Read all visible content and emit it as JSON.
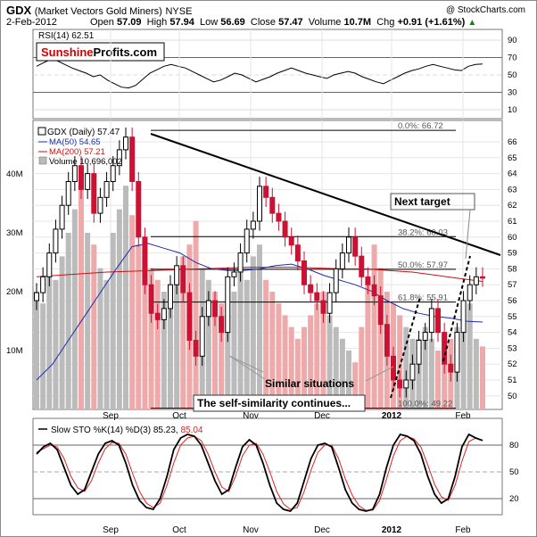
{
  "header": {
    "symbol": "GDX",
    "name": "(Market Vectors Gold Miners)",
    "exchange": "NYSE",
    "copyright": "@ StockCharts.com",
    "date": "2-Feb-2012",
    "open_label": "Open",
    "open": "57.09",
    "high_label": "High",
    "high": "57.94",
    "low_label": "Low",
    "low": "56.69",
    "close_label": "Close",
    "close": "57.47",
    "volume_label": "Volume",
    "volume": "10.7M",
    "chg_label": "Chg",
    "chg": "+0.91 (+1.61%)",
    "chg_arrow": "▲"
  },
  "logo": {
    "part1": "Sunshine",
    "part2": "Profits.com"
  },
  "panels": {
    "rsi": {
      "legend": "RSI(14) 62.51",
      "ticks": [
        "90",
        "70",
        "50",
        "30",
        "10"
      ]
    },
    "price": {
      "legend_gdx": "GDX (Daily) 57.47",
      "legend_ma50": "MA(50) 54.65",
      "legend_ma200": "MA(200) 57.21",
      "legend_volume": "Volume 10,696,002",
      "ticks": [
        "66",
        "65",
        "64",
        "63",
        "62",
        "61",
        "60",
        "59",
        "58",
        "57",
        "56",
        "55",
        "54",
        "53",
        "52",
        "51",
        "50"
      ],
      "volume_ticks": [
        "40M",
        "30M",
        "20M",
        "10M"
      ]
    },
    "stoch": {
      "legend_prefix": "Slow STO %K(14) %D(3)",
      "k_value": "85.23,",
      "d_value": "85.04",
      "ticks": [
        "80",
        "50",
        "20"
      ]
    }
  },
  "x_labels": [
    "Sep",
    "Oct",
    "Nov",
    "Dec",
    "2012",
    "Feb"
  ],
  "annotations": {
    "next_target": "Next target",
    "similar": "Similar situations",
    "self_similarity": "The self-similarity continues...",
    "fib_0": "0.0%: 66.72",
    "fib_382": "38.2%: 60.03",
    "fib_50": "50.0%: 57.97",
    "fib_618": "61.8%: 55.91",
    "fib_100": "100.0%: 49.22"
  },
  "colors": {
    "up": "#000000",
    "down": "#cc1133",
    "ma50": "#1a2ea8",
    "ma200": "#cc1111",
    "volume_down": "#eeaaaa",
    "volume_up": "#bbbbbb",
    "logo_red": "#cc0000"
  },
  "chart_data": {
    "type": "line",
    "title": "GDX (Market Vectors Gold Miners)",
    "x": [
      "Sep",
      "Oct",
      "Nov",
      "Dec",
      "2012",
      "Feb"
    ],
    "price_ylim": [
      49.5,
      66.8
    ],
    "price_close": [
      56.5,
      57.5,
      59,
      60.5,
      62,
      63.5,
      64.5,
      63,
      64,
      61.5,
      62.5,
      63.5,
      64.5,
      65.5,
      66.3,
      63.5,
      60,
      57,
      55.2,
      54.8,
      55.5,
      57,
      58.2,
      56.5,
      53.5,
      52.5,
      55,
      56,
      55,
      54,
      57.5,
      57.8,
      59,
      60.5,
      61,
      63.2,
      62.5,
      61.5,
      61,
      60,
      59.5,
      58.5,
      57,
      56.5,
      56,
      55.2,
      56.5,
      58,
      59,
      60,
      58.8,
      57.5,
      57,
      56.3,
      54.5,
      52.5,
      51,
      50.5,
      51,
      52,
      53.5,
      54,
      55.5,
      54,
      52,
      51.5,
      54,
      56,
      57,
      57.5,
      57.47
    ],
    "ma50": [
      51,
      52,
      53.5,
      55,
      56.5,
      58,
      59.4,
      59.6,
      59.3,
      59,
      58.4,
      58,
      57.9,
      57.9,
      58,
      58.2,
      58.3,
      58,
      57.6,
      57.3,
      57,
      56.6,
      56,
      55.5,
      55.2,
      55,
      54.9,
      54.7,
      54.65
    ],
    "ma200": [
      57.5,
      57.6,
      57.7,
      57.8,
      57.85,
      57.9,
      57.95,
      58,
      58.05,
      58.1,
      58.1,
      58.1,
      58.05,
      58,
      58,
      57.9,
      57.8,
      57.6,
      57.4,
      57.21
    ],
    "volume_millions": [
      20,
      18,
      24,
      22,
      26,
      30,
      34,
      38,
      30,
      28,
      24,
      22,
      30,
      34,
      38,
      33,
      28,
      26,
      24,
      22,
      20,
      18,
      22,
      26,
      28,
      32,
      24,
      22,
      20,
      18,
      16,
      20,
      24,
      22,
      26,
      28,
      22,
      20,
      18,
      16,
      14,
      12,
      14,
      16,
      18,
      20,
      16,
      14,
      12,
      10,
      8,
      14,
      22,
      28,
      24,
      20,
      18,
      16,
      14,
      12,
      12,
      14,
      12,
      10,
      10,
      12,
      14,
      16,
      18,
      12,
      10.7
    ],
    "rsi_ylim": [
      10,
      90
    ],
    "rsi": [
      60,
      64,
      68,
      66,
      62,
      58,
      55,
      52,
      48,
      50,
      44,
      40,
      36,
      35,
      38,
      45,
      52,
      56,
      60,
      62,
      60,
      58,
      54,
      50,
      46,
      42,
      44,
      48,
      52,
      50,
      46,
      42,
      45,
      48,
      52,
      55,
      58,
      55,
      52,
      50,
      48,
      46,
      50,
      52,
      54,
      52,
      48,
      45,
      42,
      40,
      44,
      48,
      52,
      55,
      57,
      60,
      62,
      60,
      58,
      56,
      55,
      60,
      62,
      62.51
    ],
    "stoch_ylim": [
      0,
      100
    ],
    "stoch_k": [
      70,
      78,
      82,
      75,
      55,
      35,
      25,
      30,
      50,
      70,
      82,
      85,
      80,
      60,
      35,
      18,
      10,
      8,
      20,
      45,
      75,
      88,
      92,
      90,
      80,
      60,
      40,
      25,
      30,
      55,
      78,
      86,
      80,
      60,
      35,
      15,
      8,
      6,
      15,
      40,
      65,
      80,
      82,
      78,
      55,
      30,
      15,
      8,
      5,
      8,
      25,
      55,
      80,
      92,
      90,
      85,
      70,
      45,
      25,
      15,
      20,
      45,
      78,
      92,
      88,
      85.23
    ],
    "stoch_d": [
      72,
      76,
      80,
      78,
      65,
      45,
      32,
      28,
      40,
      60,
      76,
      83,
      82,
      70,
      48,
      28,
      15,
      10,
      15,
      35,
      60,
      80,
      88,
      90,
      85,
      70,
      50,
      33,
      28,
      45,
      68,
      80,
      82,
      70,
      50,
      28,
      14,
      8,
      10,
      28,
      52,
      72,
      80,
      80,
      65,
      42,
      24,
      12,
      7,
      7,
      18,
      42,
      68,
      85,
      90,
      87,
      78,
      58,
      36,
      22,
      18,
      35,
      62,
      84,
      88,
      85.04
    ],
    "fibonacci": [
      {
        "label": "0.0%",
        "value": 66.72
      },
      {
        "label": "38.2%",
        "value": 60.03
      },
      {
        "label": "50.0%",
        "value": 57.97
      },
      {
        "label": "61.8%",
        "value": 55.91
      },
      {
        "label": "100.0%",
        "value": 49.22
      }
    ]
  }
}
